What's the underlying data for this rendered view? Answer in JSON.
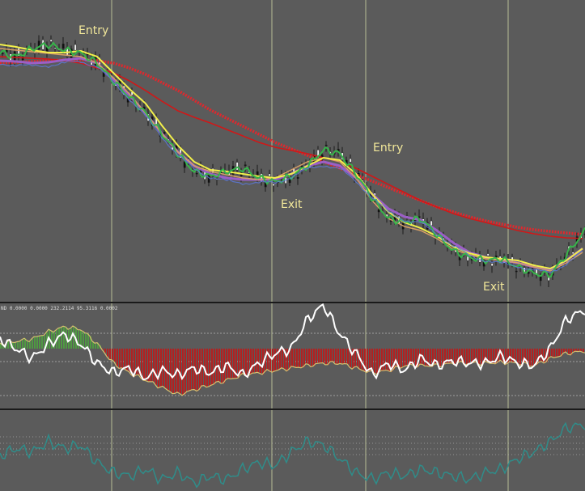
{
  "colors": {
    "background": "#5b5b5b",
    "vgrid": "#cfd6a3",
    "separator": "#1a1a1a",
    "hgrid": "#bdbdbd",
    "candle_up": "#f2f2f2",
    "candle_down": "#111111",
    "ema_fast_green": "#37b34a",
    "ema_mid_purple": "#9b5fc7",
    "ema_blue": "#5b7be0",
    "ma_yellow": "#f2f04a",
    "ma_tan": "#d9a066",
    "ma_red_dotted": "#e0282d",
    "ma_red": "#d01818",
    "hist_pos": "#4f9a42",
    "hist_neg": "#b32020",
    "hist_outline": "#d4c070",
    "osc_white": "#ffffff",
    "bottom_teal": "#2f8d8a"
  },
  "annotations": {
    "entry1": "Entry",
    "entry2": "Entry",
    "exit1": "Exit",
    "exit2": "Exit"
  },
  "indicator_header": "ND 0.0000 0.0000 232.2114 95.3116 0.0002",
  "chart_data": [
    {
      "type": "line",
      "panel": "price",
      "title": "",
      "xlabel": "",
      "ylabel": "",
      "grid": true,
      "x": [
        0,
        20,
        40,
        60,
        80,
        100,
        120,
        140,
        160,
        180,
        200,
        220,
        240,
        260,
        280,
        300,
        320,
        340,
        360,
        380,
        400,
        420,
        440,
        460,
        480,
        500,
        520,
        540,
        560,
        580,
        600,
        620,
        640,
        660,
        680,
        700,
        723
      ],
      "series": [
        {
          "key": "price",
          "values": [
            65,
            70,
            60,
            55,
            62,
            66,
            78,
            100,
            120,
            140,
            165,
            190,
            212,
            218,
            212,
            208,
            220,
            225,
            218,
            205,
            185,
            190,
            215,
            245,
            270,
            275,
            270,
            290,
            310,
            318,
            322,
            320,
            330,
            338,
            340,
            315,
            285
          ]
        },
        {
          "key": "ma_yellow",
          "values": [
            55,
            58,
            62,
            65,
            65,
            63,
            70,
            90,
            110,
            128,
            155,
            180,
            200,
            210,
            212,
            215,
            218,
            220,
            215,
            205,
            195,
            198,
            215,
            240,
            262,
            275,
            282,
            292,
            305,
            313,
            318,
            320,
            322,
            328,
            332,
            322,
            305
          ]
        },
        {
          "key": "ma_tan",
          "values": [
            60,
            62,
            64,
            66,
            68,
            70,
            78,
            96,
            116,
            140,
            165,
            188,
            205,
            212,
            216,
            220,
            222,
            220,
            210,
            200,
            195,
            200,
            220,
            248,
            270,
            280,
            285,
            295,
            308,
            315,
            320,
            322,
            325,
            330,
            335,
            325,
            310
          ]
        },
        {
          "key": "ma_purple",
          "values": [
            75,
            76,
            78,
            77,
            74,
            72,
            78,
            98,
            118,
            140,
            165,
            188,
            205,
            215,
            220,
            222,
            222,
            222,
            215,
            205,
            200,
            205,
            220,
            240,
            258,
            268,
            272,
            285,
            300,
            312,
            318,
            322,
            325,
            330,
            333,
            322,
            305
          ]
        },
        {
          "key": "ma_red",
          "values": [
            70,
            71,
            72,
            73,
            75,
            78,
            84,
            90,
            100,
            112,
            125,
            137,
            145,
            152,
            160,
            168,
            176,
            182,
            186,
            190,
            195,
            200,
            208,
            218,
            228,
            238,
            248,
            256,
            264,
            270,
            275,
            280,
            285,
            289,
            292,
            294,
            295
          ]
        },
        {
          "key": "ma_red_dotted",
          "values": [
            78,
            77,
            76,
            75,
            74,
            74,
            75,
            78,
            84,
            92,
            102,
            112,
            124,
            136,
            146,
            156,
            166,
            176,
            184,
            192,
            200,
            208,
            216,
            224,
            232,
            240,
            248,
            256,
            262,
            268,
            273,
            277,
            281,
            284,
            286,
            288,
            290
          ]
        }
      ]
    },
    {
      "type": "bar",
      "panel": "oscillator",
      "title": "",
      "grid": true,
      "x": [
        0,
        20,
        40,
        60,
        80,
        100,
        120,
        140,
        160,
        180,
        200,
        220,
        240,
        260,
        280,
        300,
        320,
        340,
        360,
        380,
        400,
        420,
        440,
        460,
        480,
        500,
        520,
        540,
        560,
        580,
        600,
        620,
        640,
        660,
        680,
        700,
        723
      ],
      "series": [
        {
          "key": "histogram",
          "values": [
            0.1,
            0.15,
            0.2,
            0.35,
            0.45,
            0.4,
            0.1,
            -0.3,
            -0.5,
            -0.65,
            -0.8,
            -0.95,
            -0.85,
            -0.75,
            -0.65,
            -0.55,
            -0.5,
            -0.45,
            -0.4,
            -0.35,
            -0.3,
            -0.3,
            -0.4,
            -0.5,
            -0.45,
            -0.35,
            -0.35,
            -0.35,
            -0.3,
            -0.3,
            -0.3,
            -0.28,
            -0.3,
            -0.35,
            -0.2,
            -0.1,
            -0.05
          ]
        },
        {
          "key": "osc_line",
          "values": [
            0.2,
            0.0,
            -0.2,
            0.1,
            0.3,
            0.1,
            -0.3,
            -0.5,
            -0.4,
            -0.6,
            -0.45,
            -0.55,
            -0.4,
            -0.5,
            -0.35,
            -0.55,
            -0.3,
            -0.1,
            0.0,
            0.6,
            0.9,
            0.3,
            -0.1,
            -0.55,
            -0.3,
            -0.45,
            -0.2,
            -0.35,
            -0.25,
            -0.3,
            -0.3,
            -0.15,
            -0.3,
            -0.35,
            0.0,
            0.6,
            0.8
          ]
        }
      ]
    },
    {
      "type": "line",
      "panel": "bottom",
      "title": "",
      "grid": true,
      "x": [
        0,
        20,
        40,
        60,
        80,
        100,
        120,
        140,
        160,
        180,
        200,
        220,
        240,
        260,
        280,
        300,
        320,
        340,
        360,
        380,
        400,
        420,
        440,
        460,
        480,
        500,
        520,
        540,
        560,
        580,
        600,
        620,
        640,
        660,
        680,
        700,
        723
      ],
      "series": [
        {
          "key": "teal_line",
          "values": [
            0.4,
            0.5,
            0.45,
            0.6,
            0.5,
            0.55,
            0.3,
            0.15,
            0.1,
            0.2,
            0.05,
            0.15,
            0.0,
            0.1,
            0.05,
            0.2,
            0.3,
            0.25,
            0.45,
            0.6,
            0.55,
            0.35,
            0.15,
            0.05,
            0.15,
            0.1,
            0.2,
            0.15,
            0.1,
            0.05,
            0.15,
            0.2,
            0.35,
            0.45,
            0.6,
            0.8,
            0.85
          ]
        }
      ]
    }
  ]
}
